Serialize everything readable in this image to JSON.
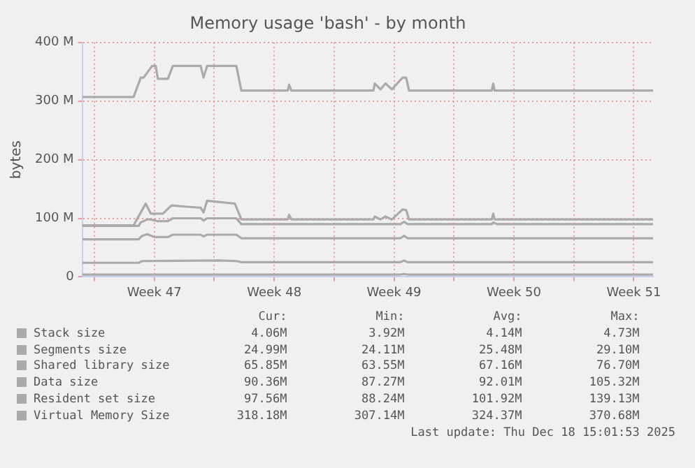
{
  "chart_data": {
    "type": "line",
    "title": "Memory usage 'bash' - by month",
    "ylabel": "bytes",
    "xlim": [
      "2025-11-15T07:00",
      "2025-12-18T15:00"
    ],
    "xticks": [
      {
        "value": "2025-11-16",
        "label": null
      },
      {
        "value": "2025-11-19T12:00",
        "label": "Week 47"
      },
      {
        "value": "2025-11-23",
        "label": null
      },
      {
        "value": "2025-11-26T12:00",
        "label": "Week 48"
      },
      {
        "value": "2025-11-30",
        "label": null
      },
      {
        "value": "2025-12-03T12:00",
        "label": "Week 49"
      },
      {
        "value": "2025-12-07",
        "label": null
      },
      {
        "value": "2025-12-10T12:00",
        "label": "Week 50"
      },
      {
        "value": "2025-12-14",
        "label": null
      },
      {
        "value": "2025-12-17T12:00",
        "label": "Week 51"
      }
    ],
    "ylim": [
      0,
      400
    ],
    "yticks": [
      {
        "value": 0,
        "label": "0"
      },
      {
        "value": 100,
        "label": "100 M"
      },
      {
        "value": 200,
        "label": "200 M"
      },
      {
        "value": 300,
        "label": "300 M"
      },
      {
        "value": 400,
        "label": "400 M"
      }
    ],
    "grid": true,
    "legend": "bottom",
    "marker": "none",
    "line_style": "solid",
    "series": [
      {
        "name": "Stack size",
        "color": "#aaaaaa",
        "x": [
          "2025-11-15T07:00",
          "2025-12-03T21:00",
          "2025-12-04T02:00",
          "2025-12-04T07:00",
          "2025-12-18T15:00"
        ],
        "values": [
          4,
          4,
          5,
          4,
          4
        ]
      },
      {
        "name": "Segments size",
        "color": "#aaaaaa",
        "x": [
          "2025-11-15T07:00",
          "2025-11-18T14:00",
          "2025-11-18T19:00",
          "2025-11-23T07:00",
          "2025-11-24T07:00",
          "2025-11-24T14:00",
          "2025-12-03T21:00",
          "2025-12-04T02:00",
          "2025-12-04T07:00",
          "2025-12-18T15:00"
        ],
        "values": [
          24,
          24,
          27,
          28,
          27,
          25,
          25,
          28,
          25,
          25
        ]
      },
      {
        "name": "Shared library size",
        "color": "#aaaaaa",
        "x": [
          "2025-11-15T07:00",
          "2025-11-18T14:00",
          "2025-11-18T19:00",
          "2025-11-19T02:00",
          "2025-11-19T12:00",
          "2025-11-20T07:00",
          "2025-11-20T14:00",
          "2025-11-22T05:00",
          "2025-11-22T09:00",
          "2025-11-22T14:00",
          "2025-11-24T07:00",
          "2025-11-24T14:00",
          "2025-12-03T21:00",
          "2025-12-04T02:00",
          "2025-12-04T07:00",
          "2025-12-18T15:00"
        ],
        "values": [
          64,
          64,
          70,
          73,
          68,
          68,
          72,
          72,
          69,
          72,
          72,
          66,
          66,
          70,
          66,
          66
        ]
      },
      {
        "name": "Data size",
        "color": "#aaaaaa",
        "x": [
          "2025-11-15T07:00",
          "2025-11-18T14:00",
          "2025-11-18T17:00",
          "2025-11-19T02:00",
          "2025-11-19T07:00",
          "2025-11-19T17:00",
          "2025-11-20T07:00",
          "2025-11-20T14:00",
          "2025-11-22T05:00",
          "2025-11-22T09:00",
          "2025-11-22T14:00",
          "2025-11-24T07:00",
          "2025-11-24T14:00",
          "2025-12-03T21:00",
          "2025-12-04T02:00",
          "2025-12-04T07:00",
          "2025-12-09T05:00",
          "2025-12-09T07:00",
          "2025-12-09T12:00",
          "2025-12-18T15:00"
        ],
        "values": [
          87,
          87,
          93,
          98,
          98,
          95,
          95,
          100,
          100,
          96,
          100,
          100,
          90,
          90,
          94,
          90,
          90,
          93,
          90,
          90
        ]
      },
      {
        "name": "Resident set size",
        "color": "#aaaaaa",
        "x": [
          "2025-11-15T07:00",
          "2025-11-18T07:00",
          "2025-11-18T17:00",
          "2025-11-19T00:00",
          "2025-11-19T07:00",
          "2025-11-20T00:00",
          "2025-11-20T12:00",
          "2025-11-21T07:00",
          "2025-11-22T05:00",
          "2025-11-22T09:00",
          "2025-11-22T14:00",
          "2025-11-24T05:00",
          "2025-11-24T14:00",
          "2025-11-27T07:00",
          "2025-11-27T09:00",
          "2025-11-27T12:00",
          "2025-12-02T07:00",
          "2025-12-02T09:00",
          "2025-12-02T17:00",
          "2025-12-03T00:00",
          "2025-12-03T09:00",
          "2025-12-04T00:00",
          "2025-12-04T05:00",
          "2025-12-04T09:00",
          "2025-12-09T05:00",
          "2025-12-09T07:00",
          "2025-12-09T09:00",
          "2025-12-18T15:00"
        ],
        "values": [
          88,
          88,
          110,
          125,
          108,
          108,
          122,
          120,
          118,
          110,
          130,
          125,
          98,
          98,
          106,
          98,
          98,
          103,
          98,
          103,
          98,
          115,
          114,
          98,
          98,
          108,
          98,
          98
        ]
      },
      {
        "name": "Virtual Memory Size",
        "color": "#aaaaaa",
        "x": [
          "2025-11-15T07:00",
          "2025-11-18T07:00",
          "2025-11-18T17:00",
          "2025-11-18T21:00",
          "2025-11-19T09:00",
          "2025-11-19T14:00",
          "2025-11-19T17:00",
          "2025-11-20T07:00",
          "2025-11-20T14:00",
          "2025-11-22T05:00",
          "2025-11-22T09:00",
          "2025-11-22T14:00",
          "2025-11-24T07:00",
          "2025-11-24T14:00",
          "2025-11-27T07:00",
          "2025-11-27T09:00",
          "2025-11-27T12:00",
          "2025-12-02T07:00",
          "2025-12-02T09:00",
          "2025-12-02T17:00",
          "2025-12-03T00:00",
          "2025-12-03T09:00",
          "2025-12-04T00:00",
          "2025-12-04T05:00",
          "2025-12-04T09:00",
          "2025-12-09T05:00",
          "2025-12-09T07:00",
          "2025-12-09T09:00",
          "2025-12-18T15:00"
        ],
        "values": [
          307,
          307,
          340,
          340,
          360,
          360,
          338,
          338,
          360,
          360,
          340,
          360,
          360,
          318,
          318,
          328,
          318,
          318,
          330,
          320,
          330,
          320,
          340,
          340,
          318,
          318,
          330,
          318,
          318
        ]
      }
    ],
    "annotations": [
      "Cur:",
      "Min:",
      "Avg:",
      "Max:",
      "4.06M",
      "3.92M",
      "4.14M",
      "4.73M",
      "24.99M",
      "24.11M",
      "25.48M",
      "29.10M",
      "65.85M",
      "63.55M",
      "67.16M",
      "76.70M",
      "90.36M",
      "87.27M",
      "92.01M",
      "105.32M",
      "97.56M",
      "88.24M",
      "101.92M",
      "139.13M",
      "318.18M",
      "307.14M",
      "324.37M",
      "370.68M",
      "Last update: Thu Dec 18 15:01:53 2025"
    ]
  }
}
